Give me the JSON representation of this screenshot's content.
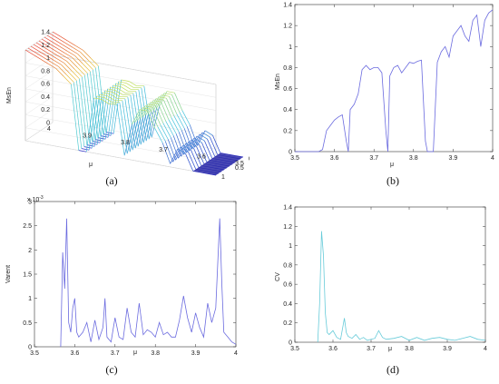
{
  "captions": {
    "a": "(a)",
    "b": "(b)",
    "c": "(c)",
    "d": "(d)"
  },
  "chart_data": [
    {
      "id": "a",
      "type": "surface",
      "title": "",
      "zlabel": "MsEn",
      "xlabel": "μ",
      "zticks": [
        "0",
        "0.2",
        "0.4",
        "0.6",
        "0.8",
        "1",
        "1.2",
        "1.4"
      ],
      "xticks": [
        "4",
        "3.9",
        "3.8",
        "3.7",
        "3.6",
        "3.5"
      ],
      "yticks": [
        "0",
        "0.5",
        "1"
      ],
      "mu": [
        3.5,
        3.52,
        3.54,
        3.56,
        3.58,
        3.6,
        3.62,
        3.64,
        3.66,
        3.68,
        3.7,
        3.72,
        3.74,
        3.76,
        3.78,
        3.8,
        3.82,
        3.84,
        3.86,
        3.88,
        3.9,
        3.92,
        3.94,
        3.96,
        3.98,
        4.0
      ],
      "msen": [
        0.0,
        0.0,
        0.0,
        0.0,
        0.25,
        0.3,
        0.05,
        0.35,
        0.55,
        0.8,
        0.8,
        0.55,
        0.05,
        0.82,
        0.8,
        0.85,
        0.85,
        0.0,
        0.0,
        1.0,
        1.1,
        1.2,
        1.25,
        1.3,
        1.35,
        1.4
      ]
    },
    {
      "id": "b",
      "type": "line",
      "title": "",
      "xlabel": "μ",
      "ylabel": "MsEn",
      "xlim": [
        3.5,
        4.0
      ],
      "ylim": [
        0,
        1.4
      ],
      "xticks": [
        "3.5",
        "3.6",
        "3.7",
        "3.8",
        "3.9",
        "4"
      ],
      "yticks": [
        "0",
        "0.2",
        "0.4",
        "0.6",
        "0.8",
        "1",
        "1.2",
        "1.4"
      ],
      "color": "#6b6bdf",
      "x": [
        3.5,
        3.56,
        3.57,
        3.58,
        3.59,
        3.6,
        3.61,
        3.62,
        3.63,
        3.635,
        3.64,
        3.65,
        3.66,
        3.67,
        3.68,
        3.69,
        3.7,
        3.71,
        3.72,
        3.73,
        3.735,
        3.74,
        3.75,
        3.76,
        3.77,
        3.78,
        3.79,
        3.8,
        3.81,
        3.82,
        3.83,
        3.835,
        3.84,
        3.85,
        3.86,
        3.87,
        3.88,
        3.89,
        3.9,
        3.91,
        3.92,
        3.93,
        3.94,
        3.95,
        3.96,
        3.97,
        3.98,
        3.99,
        4.0
      ],
      "y": [
        0.0,
        0.0,
        0.02,
        0.2,
        0.25,
        0.3,
        0.33,
        0.35,
        0.1,
        0.0,
        0.4,
        0.45,
        0.55,
        0.78,
        0.82,
        0.78,
        0.8,
        0.8,
        0.75,
        0.2,
        0.0,
        0.72,
        0.8,
        0.82,
        0.75,
        0.8,
        0.85,
        0.84,
        0.86,
        0.87,
        0.1,
        0.0,
        0.0,
        0.0,
        0.85,
        0.95,
        1.0,
        0.9,
        1.1,
        1.15,
        1.2,
        1.1,
        1.05,
        1.25,
        1.3,
        1.0,
        1.25,
        1.32,
        1.35
      ]
    },
    {
      "id": "c",
      "type": "line",
      "title": "",
      "xlabel": "μ",
      "ylabel": "Varent",
      "exponent_label": "x 10",
      "exponent_power": "-3",
      "xlim": [
        3.5,
        4.0
      ],
      "ylim": [
        0,
        3
      ],
      "xticks": [
        "3.5",
        "3.6",
        "3.7",
        "3.8",
        "3.9",
        "4"
      ],
      "yticks": [
        "0",
        "0.5",
        "1",
        "1.5",
        "2",
        "2.5",
        "3"
      ],
      "color": "#6b6bdf",
      "x": [
        3.565,
        3.57,
        3.575,
        3.58,
        3.585,
        3.59,
        3.595,
        3.6,
        3.605,
        3.61,
        3.62,
        3.63,
        3.64,
        3.65,
        3.66,
        3.67,
        3.675,
        3.68,
        3.69,
        3.7,
        3.71,
        3.72,
        3.73,
        3.74,
        3.75,
        3.76,
        3.77,
        3.78,
        3.79,
        3.8,
        3.81,
        3.82,
        3.83,
        3.84,
        3.85,
        3.86,
        3.87,
        3.88,
        3.89,
        3.9,
        3.91,
        3.92,
        3.93,
        3.94,
        3.95,
        3.96,
        3.965,
        3.97,
        3.98,
        3.99,
        4.0
      ],
      "y": [
        0.0,
        1.95,
        1.2,
        2.65,
        0.5,
        0.3,
        0.8,
        1.0,
        0.3,
        0.2,
        0.3,
        0.5,
        0.1,
        0.55,
        0.15,
        0.4,
        1.0,
        0.2,
        0.1,
        0.6,
        0.2,
        0.15,
        0.8,
        0.3,
        0.2,
        0.9,
        0.25,
        0.35,
        0.3,
        0.2,
        0.5,
        0.25,
        0.3,
        0.2,
        0.2,
        0.55,
        1.05,
        0.6,
        0.3,
        0.7,
        0.4,
        0.2,
        0.9,
        0.5,
        0.8,
        2.65,
        1.3,
        0.3,
        0.2,
        0.1,
        0.05
      ]
    },
    {
      "id": "d",
      "type": "line",
      "title": "",
      "xlabel": "μ",
      "ylabel": "CV",
      "xlim": [
        3.5,
        4.0
      ],
      "ylim": [
        0,
        1.4
      ],
      "xticks": [
        "3.5",
        "3.6",
        "3.7",
        "3.8",
        "3.9",
        "4"
      ],
      "yticks": [
        "0",
        "0.2",
        "0.4",
        "0.6",
        "0.8",
        "1",
        "1.2",
        "1.4"
      ],
      "color": "#67cbd9",
      "x": [
        3.56,
        3.565,
        3.57,
        3.575,
        3.58,
        3.585,
        3.59,
        3.6,
        3.61,
        3.62,
        3.63,
        3.635,
        3.64,
        3.65,
        3.66,
        3.67,
        3.68,
        3.69,
        3.7,
        3.71,
        3.72,
        3.73,
        3.74,
        3.76,
        3.78,
        3.8,
        3.82,
        3.84,
        3.86,
        3.88,
        3.9,
        3.92,
        3.94,
        3.96,
        3.98,
        4.0
      ],
      "y": [
        0.0,
        0.4,
        1.15,
        0.9,
        0.3,
        0.1,
        0.08,
        0.12,
        0.05,
        0.03,
        0.25,
        0.1,
        0.06,
        0.04,
        0.08,
        0.03,
        0.05,
        0.02,
        0.03,
        0.04,
        0.12,
        0.05,
        0.03,
        0.04,
        0.06,
        0.02,
        0.05,
        0.02,
        0.04,
        0.05,
        0.03,
        0.02,
        0.04,
        0.06,
        0.03,
        0.02
      ]
    }
  ]
}
